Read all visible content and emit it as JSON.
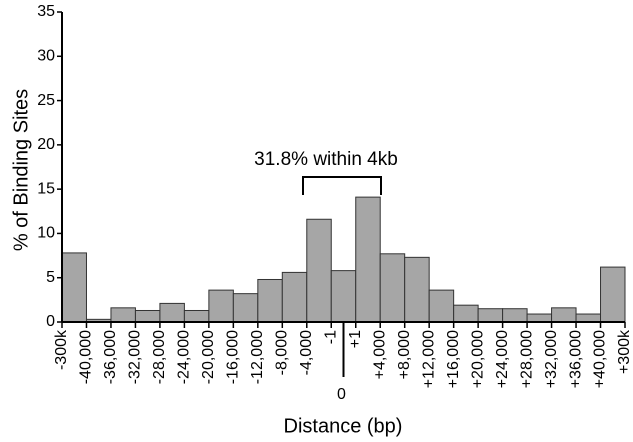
{
  "chart_data": {
    "type": "histogram",
    "ylabel": "% of Binding Sites",
    "xlabel": "Distance (bp)",
    "annotation": "31.8% within 4kb",
    "bin_labels": [
      "-300k",
      "-40,000",
      "-36,000",
      "-32,000",
      "-28,000",
      "-24,000",
      "-20,000",
      "-16,000",
      "-12,000",
      "-8,000",
      "-4,000",
      "-1",
      "+1",
      "+4,000",
      "+8,000",
      "+12,000",
      "+16,000",
      "+20,000",
      "+24,000",
      "+28,000",
      "+32,000",
      "+36,000",
      "+40,000",
      "+300k"
    ],
    "center_label": "0",
    "values": [
      7.8,
      0.3,
      1.6,
      1.3,
      2.1,
      1.3,
      3.6,
      3.2,
      4.8,
      5.6,
      11.6,
      5.8,
      14.1,
      7.7,
      7.3,
      3.6,
      1.9,
      1.5,
      1.5,
      0.9,
      1.6,
      0.9,
      6.2
    ],
    "color": "#a6a6a6",
    "ylim": [
      0,
      35
    ],
    "yticks": [
      0,
      5,
      10,
      15,
      20,
      25,
      30,
      35
    ]
  }
}
